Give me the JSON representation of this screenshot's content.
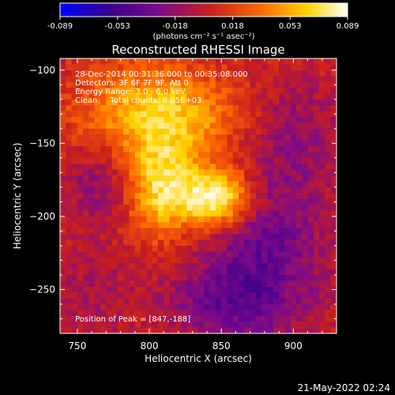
{
  "chart_data": {
    "type": "heatmap",
    "title": "Reconstructed RHESSI Image",
    "xlabel": "Heliocentric X (arcsec)",
    "ylabel": "Heliocentric Y (arcsec)",
    "xlim": [
      738,
      930
    ],
    "ylim": [
      -280,
      -92
    ],
    "x_ticks": [
      750,
      800,
      850,
      900
    ],
    "y_ticks": [
      -100,
      -150,
      -200,
      -250
    ],
    "colorbar": {
      "min": -0.089,
      "max": 0.089,
      "ticks": [
        "-0.089",
        "-0.053",
        "-0.018",
        "0.018",
        "0.053",
        "0.089"
      ],
      "units_label": "(photons cm⁻² s⁻¹ asec⁻²)",
      "colormap": [
        "#0000ff",
        "#3a008c",
        "#7a0a8a",
        "#c81e1e",
        "#ff6a00",
        "#ffd400",
        "#ffffff"
      ]
    },
    "annotations": [
      "28-Dec-2014 00:31:36.000 to 00:35:08.000",
      "Detectors: 3F 6F 7F 9F, Att 0",
      "Energy Range: 3.0 - 6.0 keV",
      "Clean     Total counts: 8.65E+03"
    ],
    "peak_label": "Position of Peak = [847,-188]",
    "peak_position": [
      847,
      -188
    ],
    "sources": [
      {
        "x": 847,
        "y": -188,
        "amplitude": 0.089,
        "sx": 18,
        "sy": 14
      },
      {
        "x": 808,
        "y": -182,
        "amplitude": 0.06,
        "sx": 16,
        "sy": 22
      },
      {
        "x": 790,
        "y": -130,
        "amplitude": 0.045,
        "sx": 30,
        "sy": 25
      },
      {
        "x": 830,
        "y": -135,
        "amplitude": 0.035,
        "sx": 25,
        "sy": 22
      }
    ],
    "negative_regions": [
      {
        "x": 880,
        "y": -220,
        "amplitude": -0.04,
        "sx": 30,
        "sy": 40
      },
      {
        "x": 850,
        "y": -260,
        "amplitude": -0.03,
        "sx": 30,
        "sy": 18
      },
      {
        "x": 765,
        "y": -175,
        "amplitude": -0.025,
        "sx": 18,
        "sy": 20
      },
      {
        "x": 905,
        "y": -140,
        "amplitude": -0.02,
        "sx": 20,
        "sy": 25
      },
      {
        "x": 760,
        "y": -250,
        "amplitude": -0.015,
        "sx": 20,
        "sy": 25
      }
    ]
  },
  "footer": {
    "timestamp": "21-May-2022 02:24"
  }
}
